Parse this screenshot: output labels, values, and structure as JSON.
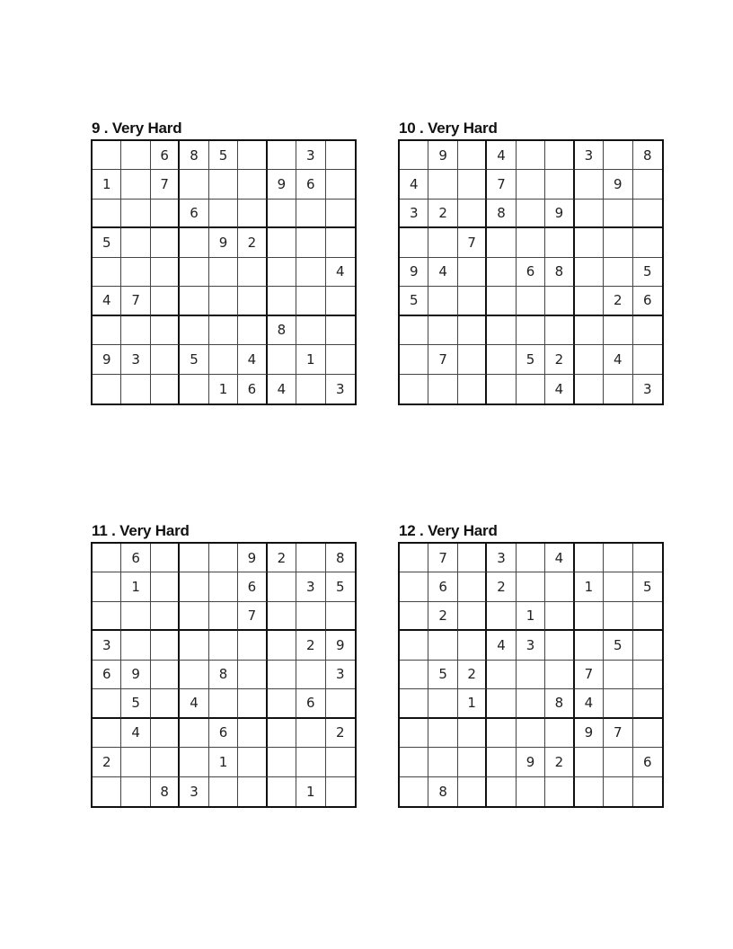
{
  "puzzles": [
    {
      "title": "9 . Very Hard",
      "rows": [
        "..685..3.",
        "1.7...96.",
        "...6.....",
        "5...92...",
        "........4",
        "47.......",
        "......8..",
        "93.5.4.1.",
        "....164.3"
      ]
    },
    {
      "title": "10 . Very Hard",
      "rows": [
        ".9.4..3.8",
        "4..7...9.",
        "32.8.9...",
        "..7......",
        "94..68..5",
        "5......26",
        ".........",
        ".7..52.4.",
        ".....4..3"
      ]
    },
    {
      "title": "11 . Very Hard",
      "rows": [
        ".6...92.8",
        ".1...6.35",
        ".....7...",
        "3......29",
        "69..8...3",
        ".5.4...6.",
        ".4..6...2",
        "2...1....",
        "..83...1."
      ]
    },
    {
      "title": "12 . Very Hard",
      "rows": [
        ".7.3.4...",
        ".6.2..1.5",
        ".2..1....",
        "...43..5.",
        ".52...7..",
        "..1..84..",
        "......97.",
        "....92..6",
        ".8......."
      ]
    }
  ]
}
